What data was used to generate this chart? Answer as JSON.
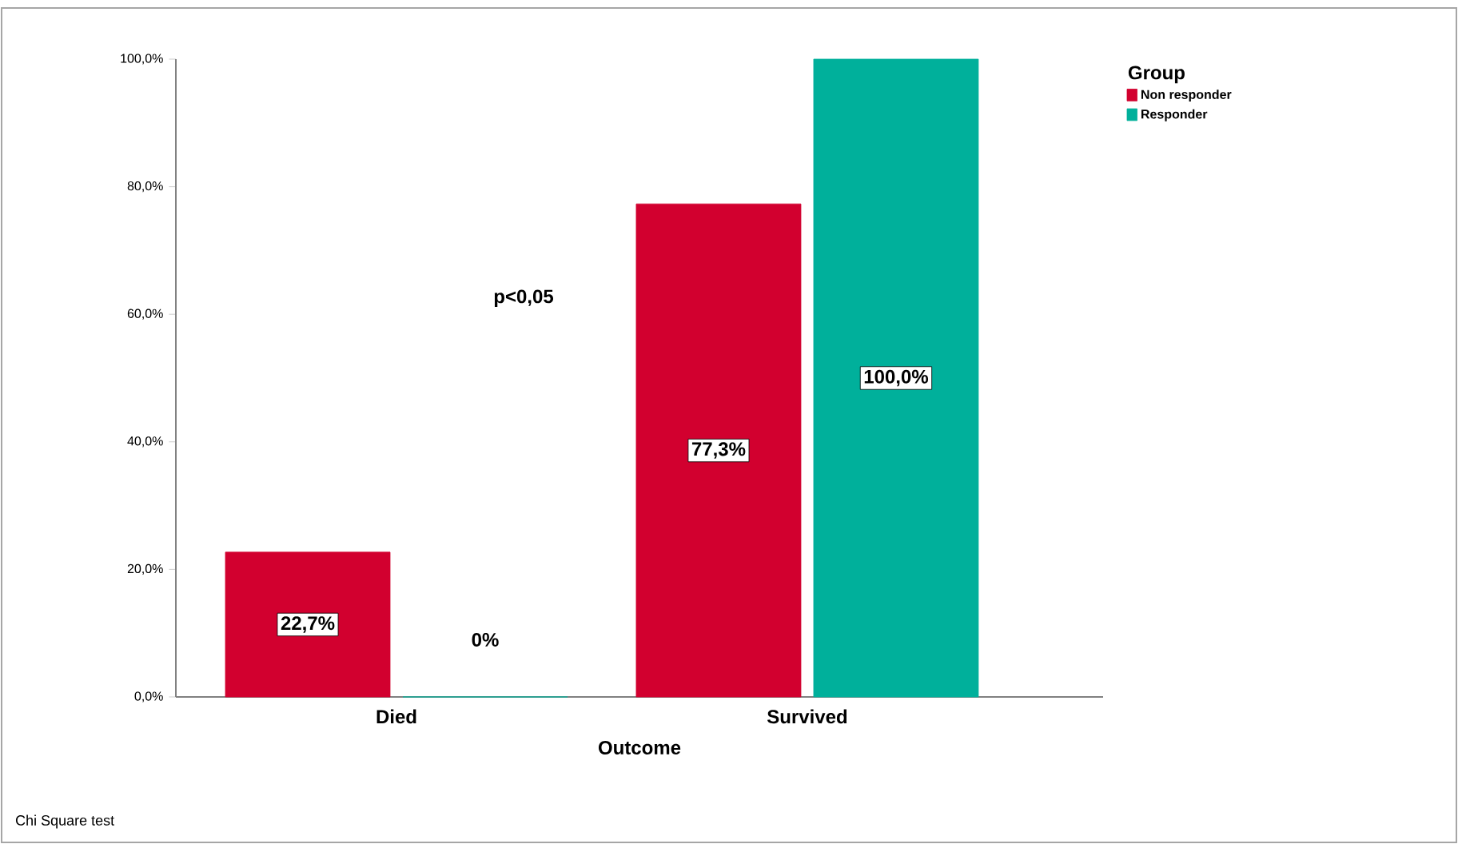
{
  "chart_data": {
    "type": "bar",
    "categories": [
      "Died",
      "Survived"
    ],
    "xlabel": "Outcome",
    "legend_title": "Group",
    "legend": "top right",
    "series": [
      {
        "name": "Non responder",
        "color": "#d2002f",
        "values": [
          22.7,
          77.3
        ],
        "value_labels": [
          "22,7%",
          "77,3%"
        ]
      },
      {
        "name": "Responder",
        "color": "#00b09b",
        "values": [
          0,
          100
        ],
        "value_labels": [
          "0%",
          "100,0%"
        ]
      }
    ],
    "ylim": [
      0,
      100
    ],
    "yticks": [
      {
        "value": 0,
        "label": "0,0%"
      },
      {
        "value": 20,
        "label": "20,0%"
      },
      {
        "value": 40,
        "label": "40,0%"
      },
      {
        "value": 60,
        "label": "60,0%"
      },
      {
        "value": 80,
        "label": "80,0%"
      },
      {
        "value": 100,
        "label": "100,0%"
      }
    ],
    "grid": false,
    "annotations": [
      "p<0,05",
      "Chi Square test"
    ]
  }
}
